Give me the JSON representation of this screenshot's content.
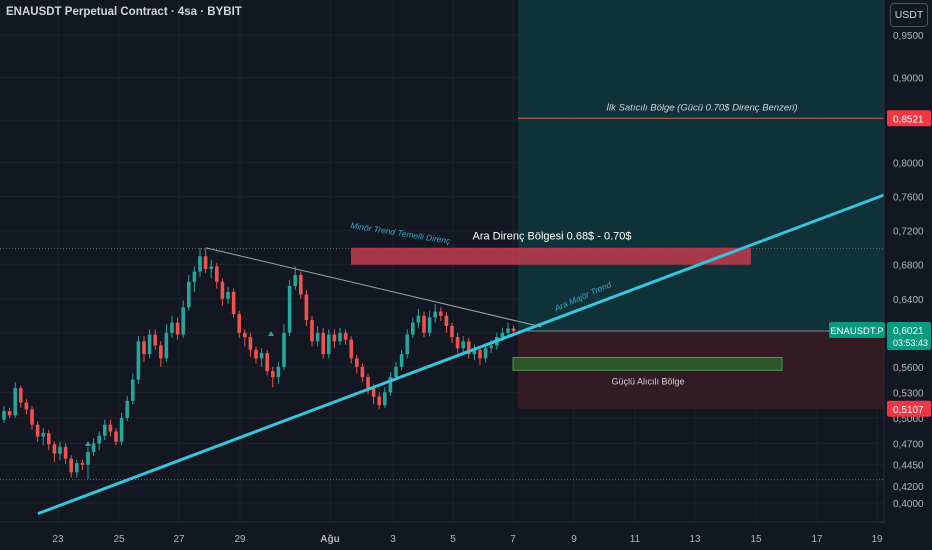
{
  "header": {
    "title": "ENAUSDT Perpetual Contract · 4sa · BYBIT",
    "currency_label": "USDT"
  },
  "colors": {
    "background": "#131722",
    "up": "#26a69a",
    "down": "#ef5350",
    "trendline": "#39c4dc",
    "resistance_zone": "#f23645",
    "support_zone": "#4caf50",
    "grid": "#1e222d",
    "axis_text": "#b2b5be"
  },
  "chart_data": {
    "type": "candlestick",
    "symbol": "ENAUSDT.P",
    "price_scale": {
      "ticks": [
        "0,9500",
        "0,9000",
        "0,8500",
        "0,8000",
        "0,7600",
        "0,7200",
        "0,6800",
        "0,6400",
        "0,6000",
        "0,5600",
        "0,5300",
        "0,5000",
        "0,4700",
        "0,4450",
        "0,4200",
        "0,4000"
      ],
      "ylim": [
        0.385,
        0.99
      ]
    },
    "time_scale": {
      "ticks": [
        "23",
        "25",
        "27",
        "29",
        "Ağu",
        "3",
        "5",
        "7",
        "9",
        "11",
        "13",
        "15",
        "17",
        "19"
      ]
    },
    "last_price": {
      "symbol_label": "ENAUSDT.P",
      "value": "0,6021",
      "countdown": "03:53:43"
    },
    "level_labels": {
      "upper_target": "0,8521",
      "stop_level": "0,5107"
    },
    "annotations": {
      "seller_zone": "İlk Satıcılı Bölge (Gücü 0.70$ Direnç Benzeri)",
      "resistance_zone": "Ara Direnç Bölgesi 0.68$ - 0.70$",
      "minor_trend": "Minör Trend Temelli Direnç",
      "major_trend": "Ara Majör Trend",
      "buyer_zone": "Güçlü Alıcılı Bölge"
    },
    "zones": {
      "resistance": [
        0.68,
        0.7
      ],
      "support": [
        0.556,
        0.571
      ],
      "target_box": [
        0.6021,
        0.9999
      ],
      "stop_box": [
        0.5107,
        0.6021
      ]
    },
    "horizontal_levels": [
      0.8521,
      0.699,
      0.4275
    ],
    "trendlines": {
      "major": [
        [
          0,
          0.4
        ],
        [
          140,
          0.76
        ]
      ],
      "minor": [
        [
          36,
          0.7
        ],
        [
          96,
          0.607
        ]
      ]
    },
    "candles": [
      [
        0,
        0.498,
        0.508,
        0.514,
        0.494
      ],
      [
        1,
        0.508,
        0.503,
        0.512,
        0.5
      ],
      [
        2,
        0.503,
        0.535,
        0.542,
        0.5
      ],
      [
        3,
        0.535,
        0.518,
        0.538,
        0.512
      ],
      [
        4,
        0.518,
        0.51,
        0.522,
        0.504
      ],
      [
        5,
        0.51,
        0.492,
        0.514,
        0.486
      ],
      [
        6,
        0.492,
        0.478,
        0.496,
        0.472
      ],
      [
        7,
        0.478,
        0.482,
        0.488,
        0.468
      ],
      [
        8,
        0.482,
        0.469,
        0.486,
        0.462
      ],
      [
        9,
        0.469,
        0.458,
        0.472,
        0.448
      ],
      [
        10,
        0.458,
        0.466,
        0.472,
        0.45
      ],
      [
        11,
        0.466,
        0.452,
        0.47,
        0.446
      ],
      [
        12,
        0.452,
        0.436,
        0.456,
        0.43
      ],
      [
        13,
        0.436,
        0.447,
        0.451,
        0.43
      ],
      [
        14,
        0.447,
        0.445,
        0.451,
        0.439
      ],
      [
        15,
        0.445,
        0.46,
        0.466,
        0.428
      ],
      [
        16,
        0.46,
        0.47,
        0.476,
        0.455
      ],
      [
        17,
        0.47,
        0.479,
        0.484,
        0.462
      ],
      [
        18,
        0.479,
        0.492,
        0.498,
        0.474
      ],
      [
        19,
        0.492,
        0.484,
        0.498,
        0.478
      ],
      [
        20,
        0.484,
        0.472,
        0.488,
        0.468
      ],
      [
        21,
        0.472,
        0.5,
        0.506,
        0.468
      ],
      [
        22,
        0.5,
        0.52,
        0.526,
        0.496
      ],
      [
        23,
        0.52,
        0.545,
        0.552,
        0.516
      ],
      [
        24,
        0.545,
        0.59,
        0.596,
        0.54
      ],
      [
        25,
        0.59,
        0.575,
        0.596,
        0.566
      ],
      [
        26,
        0.575,
        0.598,
        0.604,
        0.57
      ],
      [
        27,
        0.598,
        0.585,
        0.604,
        0.58
      ],
      [
        28,
        0.585,
        0.57,
        0.59,
        0.56
      ],
      [
        29,
        0.57,
        0.6,
        0.61,
        0.566
      ],
      [
        30,
        0.6,
        0.612,
        0.62,
        0.594
      ],
      [
        31,
        0.612,
        0.598,
        0.618,
        0.592
      ],
      [
        32,
        0.598,
        0.63,
        0.638,
        0.594
      ],
      [
        33,
        0.63,
        0.66,
        0.668,
        0.626
      ],
      [
        34,
        0.66,
        0.672,
        0.678,
        0.648
      ],
      [
        35,
        0.672,
        0.69,
        0.7,
        0.666
      ],
      [
        36,
        0.69,
        0.675,
        0.699,
        0.67
      ],
      [
        37,
        0.675,
        0.678,
        0.686,
        0.664
      ],
      [
        38,
        0.678,
        0.66,
        0.682,
        0.652
      ],
      [
        39,
        0.66,
        0.64,
        0.664,
        0.632
      ],
      [
        40,
        0.64,
        0.648,
        0.654,
        0.634
      ],
      [
        41,
        0.648,
        0.622,
        0.652,
        0.618
      ],
      [
        42,
        0.622,
        0.6,
        0.626,
        0.594
      ],
      [
        43,
        0.6,
        0.595,
        0.604,
        0.584
      ],
      [
        44,
        0.595,
        0.58,
        0.6,
        0.572
      ],
      [
        45,
        0.58,
        0.57,
        0.584,
        0.564
      ],
      [
        46,
        0.57,
        0.576,
        0.582,
        0.56
      ],
      [
        47,
        0.576,
        0.555,
        0.58,
        0.55
      ],
      [
        48,
        0.555,
        0.548,
        0.56,
        0.536
      ],
      [
        49,
        0.548,
        0.56,
        0.566,
        0.54
      ],
      [
        50,
        0.56,
        0.6,
        0.61,
        0.556
      ],
      [
        51,
        0.6,
        0.655,
        0.662,
        0.596
      ],
      [
        52,
        0.655,
        0.668,
        0.678,
        0.65
      ],
      [
        53,
        0.668,
        0.645,
        0.672,
        0.64
      ],
      [
        54,
        0.645,
        0.615,
        0.65,
        0.608
      ],
      [
        55,
        0.615,
        0.59,
        0.62,
        0.584
      ],
      [
        56,
        0.59,
        0.6,
        0.608,
        0.584
      ],
      [
        57,
        0.6,
        0.575,
        0.606,
        0.57
      ],
      [
        58,
        0.575,
        0.598,
        0.604,
        0.57
      ],
      [
        59,
        0.598,
        0.59,
        0.604,
        0.582
      ],
      [
        60,
        0.59,
        0.6,
        0.606,
        0.586
      ],
      [
        61,
        0.6,
        0.592,
        0.604,
        0.586
      ],
      [
        62,
        0.592,
        0.57,
        0.596,
        0.564
      ],
      [
        63,
        0.57,
        0.56,
        0.574,
        0.552
      ],
      [
        64,
        0.56,
        0.548,
        0.564,
        0.542
      ],
      [
        65,
        0.548,
        0.535,
        0.552,
        0.528
      ],
      [
        66,
        0.535,
        0.525,
        0.54,
        0.516
      ],
      [
        67,
        0.525,
        0.515,
        0.53,
        0.51
      ],
      [
        68,
        0.515,
        0.53,
        0.536,
        0.512
      ],
      [
        69,
        0.53,
        0.548,
        0.554,
        0.526
      ],
      [
        70,
        0.548,
        0.56,
        0.566,
        0.544
      ],
      [
        71,
        0.56,
        0.575,
        0.58,
        0.556
      ],
      [
        72,
        0.575,
        0.598,
        0.604,
        0.57
      ],
      [
        73,
        0.598,
        0.612,
        0.618,
        0.594
      ],
      [
        74,
        0.612,
        0.62,
        0.628,
        0.606
      ],
      [
        75,
        0.62,
        0.6,
        0.625,
        0.595
      ],
      [
        76,
        0.6,
        0.618,
        0.626,
        0.596
      ],
      [
        77,
        0.618,
        0.625,
        0.634,
        0.612
      ],
      [
        78,
        0.625,
        0.62,
        0.63,
        0.614
      ],
      [
        79,
        0.62,
        0.608,
        0.624,
        0.6
      ],
      [
        80,
        0.608,
        0.595,
        0.612,
        0.588
      ],
      [
        81,
        0.595,
        0.582,
        0.6,
        0.576
      ],
      [
        82,
        0.582,
        0.59,
        0.596,
        0.576
      ],
      [
        83,
        0.59,
        0.575,
        0.594,
        0.57
      ],
      [
        84,
        0.575,
        0.58,
        0.586,
        0.568
      ],
      [
        85,
        0.58,
        0.57,
        0.584,
        0.562
      ],
      [
        86,
        0.57,
        0.582,
        0.588,
        0.565
      ],
      [
        87,
        0.582,
        0.585,
        0.592,
        0.576
      ],
      [
        88,
        0.585,
        0.595,
        0.6,
        0.58
      ],
      [
        89,
        0.595,
        0.6,
        0.606,
        0.59
      ],
      [
        90,
        0.6,
        0.605,
        0.612,
        0.595
      ],
      [
        91,
        0.605,
        0.602,
        0.608,
        0.597
      ]
    ]
  }
}
